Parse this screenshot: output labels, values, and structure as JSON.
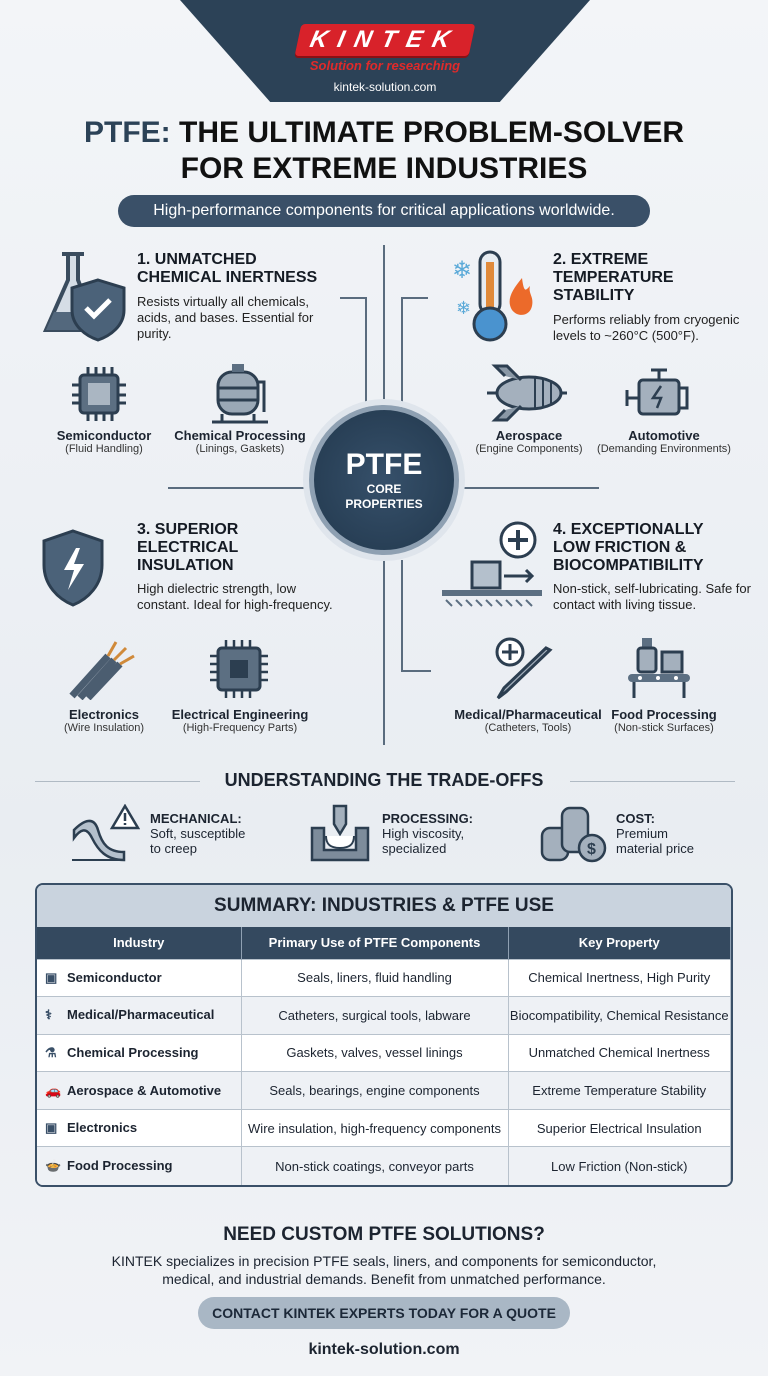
{
  "header": {
    "logo_text": "KINTEK",
    "tagline": "Solution for researching",
    "url": "kintek-solution.com"
  },
  "title": {
    "accent": "PTFE:",
    "line1": "THE ULTIMATE PROBLEM-SOLVER",
    "line2": "FOR EXTREME INDUSTRIES"
  },
  "subtitle": "High-performance components for critical applications worldwide.",
  "core": {
    "title": "PTFE",
    "sub1": "CORE",
    "sub2": "PROPERTIES"
  },
  "sections": [
    {
      "title1": "1. UNMATCHED",
      "title2": "CHEMICAL INERTNESS",
      "desc": "Resists virtually all chemicals, acids, and bases. Essential for purity.",
      "icon": "flask-shield-icon",
      "industries": [
        {
          "name": "Semiconductor",
          "use": "(Fluid Handling)",
          "icon": "chip-icon"
        },
        {
          "name": "Chemical Processing",
          "use": "(Linings, Gaskets)",
          "icon": "tank-icon"
        }
      ]
    },
    {
      "title1": "2. EXTREME",
      "title2": "TEMPERATURE",
      "title3": "STABILITY",
      "desc": "Performs reliably from cryogenic levels to ~260°C (500°F).",
      "icon": "thermometer-icon",
      "industries": [
        {
          "name": "Aerospace",
          "use": "(Engine Components)",
          "icon": "jet-engine-icon"
        },
        {
          "name": "Automotive",
          "use": "(Demanding Environments)",
          "icon": "engine-icon"
        }
      ]
    },
    {
      "title1": "3. SUPERIOR",
      "title2": "ELECTRICAL",
      "title3": "INSULATION",
      "desc": "High dielectric strength, low constant. Ideal for high-frequency.",
      "icon": "lightning-shield-icon",
      "industries": [
        {
          "name": "Electronics",
          "use": "(Wire Insulation)",
          "icon": "wires-icon"
        },
        {
          "name": "Electrical Engineering",
          "use": "(High-Frequency Parts)",
          "icon": "circuit-icon"
        }
      ]
    },
    {
      "title1": "4. EXCEPTIONALLY",
      "title2": "LOW FRICTION &",
      "title3": "BIOCOMPATIBILITY",
      "desc": "Non-stick, self-lubricating. Safe for contact with living tissue.",
      "icon": "sliding-block-icon",
      "industries": [
        {
          "name": "Medical/Pharmaceutical",
          "use": "(Catheters, Tools)",
          "icon": "scalpel-icon"
        },
        {
          "name": "Food Processing",
          "use": "(Non-stick Surfaces)",
          "icon": "conveyor-icon"
        }
      ]
    }
  ],
  "tradeoffs": {
    "title": "UNDERSTANDING THE TRADE-OFFS",
    "items": [
      {
        "label": "MECHANICAL:",
        "desc1": "Soft, susceptible",
        "desc2": "to creep",
        "icon": "bent-sheet-warning-icon"
      },
      {
        "label": "PROCESSING:",
        "desc1": "High viscosity,",
        "desc2": "specialized",
        "icon": "mold-icon"
      },
      {
        "label": "COST:",
        "desc1": "Premium",
        "desc2": "material price",
        "icon": "coins-icon"
      }
    ]
  },
  "summary": {
    "title": "SUMMARY: INDUSTRIES & PTFE USE",
    "headers": [
      "Industry",
      "Primary Use of PTFE Components",
      "Key Property"
    ],
    "rows": [
      {
        "icon": "chip-icon",
        "glyph": "▣",
        "industry": "Semiconductor",
        "use": "Seals, liners, fluid handling",
        "property": "Chemical Inertness, High Purity"
      },
      {
        "icon": "stethoscope-icon",
        "glyph": "⚕",
        "industry": "Medical/Pharmaceutical",
        "use": "Catheters, surgical tools, labware",
        "property": "Biocompatibility, Chemical Resistance"
      },
      {
        "icon": "flask-icon",
        "glyph": "⚗",
        "industry": "Chemical Processing",
        "use": "Gaskets, valves, vessel linings",
        "property": "Unmatched Chemical Inertness"
      },
      {
        "icon": "car-icon",
        "glyph": "🚗",
        "industry": "Aerospace & Automotive",
        "use": "Seals, bearings, engine components",
        "property": "Extreme Temperature Stability"
      },
      {
        "icon": "chip-icon",
        "glyph": "▣",
        "industry": "Electronics",
        "use": "Wire insulation, high-frequency components",
        "property": "Superior Electrical Insulation"
      },
      {
        "icon": "food-icon",
        "glyph": "🍲",
        "industry": "Food Processing",
        "use": "Non-stick coatings, conveyor parts",
        "property": "Low Friction (Non-stick)"
      }
    ]
  },
  "cta": {
    "title": "NEED CUSTOM PTFE SOLUTIONS?",
    "desc1": "KINTEK specializes in precision PTFE seals, liners, and components for semiconductor,",
    "desc2": "medical, and industrial demands. Benefit from unmatched performance.",
    "button": "CONTACT KINTEK EXPERTS TODAY FOR A QUOTE",
    "url": "kintek-solution.com"
  },
  "colors": {
    "navy": "#2c4257",
    "brand_red": "#d8222a"
  }
}
